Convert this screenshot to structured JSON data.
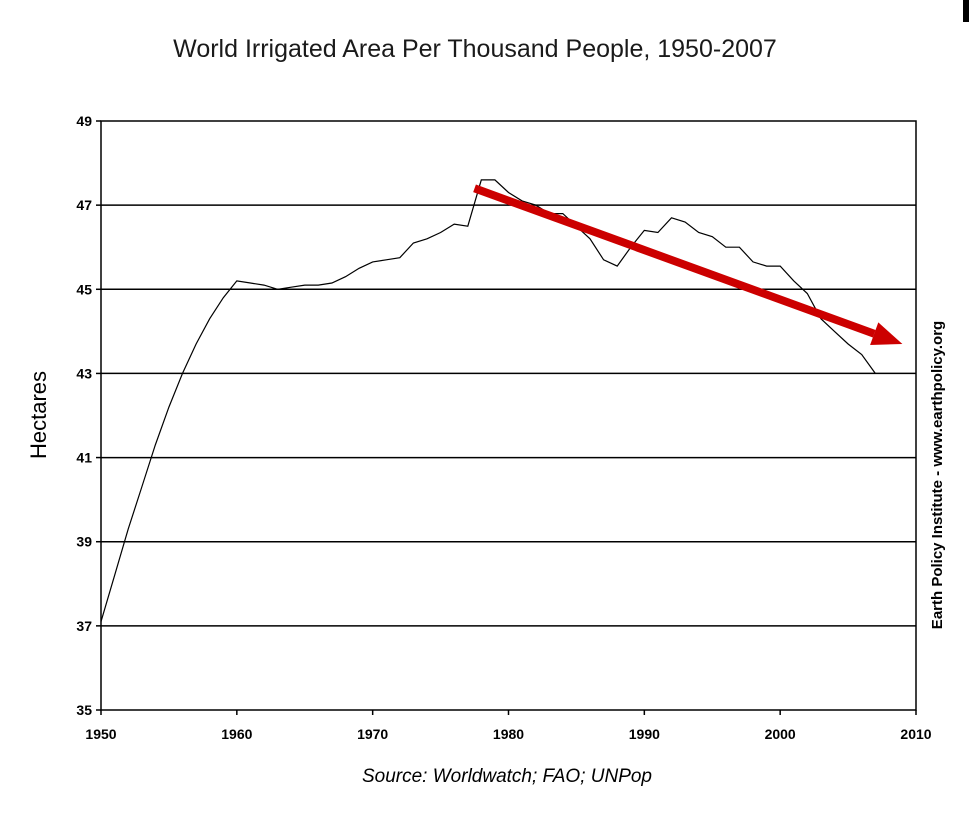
{
  "chart_data": {
    "type": "line",
    "title": "World Irrigated Area Per Thousand People, 1950-2007",
    "ylabel": "Hectares",
    "xlabel": "",
    "source": "Source: Worldwatch; FAO; UNPop",
    "credit": "Earth Policy Institute - www.earthpolicy.org",
    "xlim": [
      1950,
      2010
    ],
    "ylim": [
      35,
      49
    ],
    "xticks": [
      1950,
      1960,
      1970,
      1980,
      1990,
      2000,
      2010
    ],
    "yticks": [
      35,
      37,
      39,
      41,
      43,
      45,
      47,
      49
    ],
    "grid": "horizontal",
    "series": [
      {
        "color": "#000000",
        "x": [
          1950,
          1951,
          1952,
          1953,
          1954,
          1955,
          1956,
          1957,
          1958,
          1959,
          1960,
          1961,
          1962,
          1963,
          1964,
          1965,
          1966,
          1967,
          1968,
          1969,
          1970,
          1971,
          1972,
          1973,
          1974,
          1975,
          1976,
          1977,
          1978,
          1979,
          1980,
          1981,
          1982,
          1983,
          1984,
          1985,
          1986,
          1987,
          1988,
          1989,
          1990,
          1991,
          1992,
          1993,
          1994,
          1995,
          1996,
          1997,
          1998,
          1999,
          2000,
          2001,
          2002,
          2003,
          2004,
          2005,
          2006,
          2007
        ],
        "y": [
          37.1,
          38.2,
          39.3,
          40.3,
          41.3,
          42.2,
          43.0,
          43.7,
          44.3,
          44.8,
          45.2,
          45.15,
          45.1,
          45.0,
          45.05,
          45.1,
          45.1,
          45.15,
          45.3,
          45.5,
          45.65,
          45.7,
          45.75,
          46.1,
          46.2,
          46.35,
          46.55,
          46.5,
          47.6,
          47.6,
          47.3,
          47.1,
          47.0,
          46.8,
          46.8,
          46.5,
          46.2,
          45.7,
          45.55,
          46.0,
          46.4,
          46.35,
          46.7,
          46.6,
          46.35,
          46.25,
          46.0,
          46.0,
          45.65,
          45.55,
          45.55,
          45.2,
          44.9,
          44.3,
          44.0,
          43.7,
          43.45,
          43.0
        ]
      }
    ],
    "annotations": [
      {
        "type": "arrow",
        "color": "#cc0000",
        "from": [
          1977.5,
          47.4
        ],
        "to": [
          2009,
          43.7
        ]
      }
    ]
  }
}
